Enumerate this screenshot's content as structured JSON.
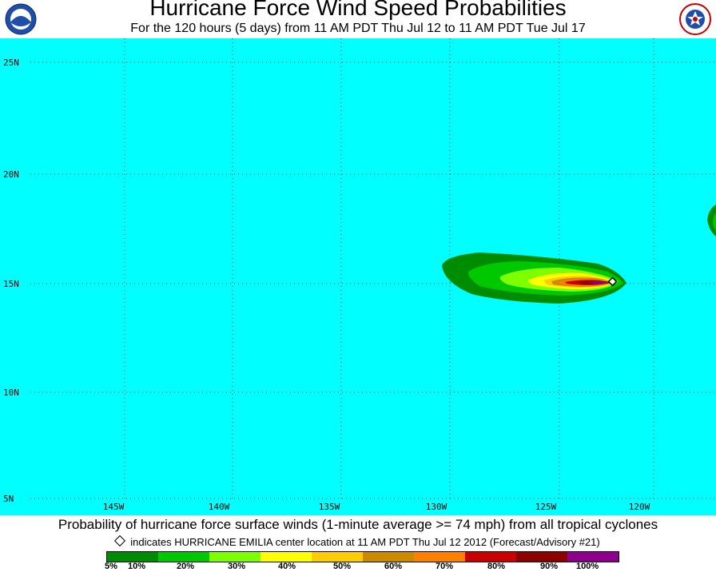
{
  "header": {
    "title": "Hurricane Force Wind Speed Probabilities",
    "subtitle": "For the 120 hours (5 days) from 11 AM PDT Thu Jul 12 to 11 AM PDT Tue Jul 17",
    "left_logo_text": "NOAA",
    "right_logo_text": "NATIONAL WEATHER SERVICE"
  },
  "map": {
    "ocean_color": "#00ffff",
    "lat_labels": [
      "25N",
      "20N",
      "15N",
      "10N",
      "5N"
    ],
    "lon_labels": [
      "145W",
      "140W",
      "135W",
      "130W",
      "125W",
      "120W"
    ],
    "storm_center_name": "HURRICANE EMILIA"
  },
  "footer": {
    "caption": "Probability of hurricane force surface winds (1-minute average >= 74 mph) from all tropical cyclones",
    "note": "indicates HURRICANE EMILIA center location at 11 AM PDT Thu Jul 12 2012 (Forecast/Advisory #21)"
  },
  "legend": {
    "colors": [
      "#008c00",
      "#00c800",
      "#7dff00",
      "#ffff00",
      "#ffcc00",
      "#cc8a00",
      "#ff7f00",
      "#c80000",
      "#8c0000",
      "#8c008c"
    ],
    "labels": [
      "5%",
      "10%",
      "20%",
      "30%",
      "40%",
      "50%",
      "60%",
      "70%",
      "80%",
      "90%",
      "100%"
    ]
  }
}
